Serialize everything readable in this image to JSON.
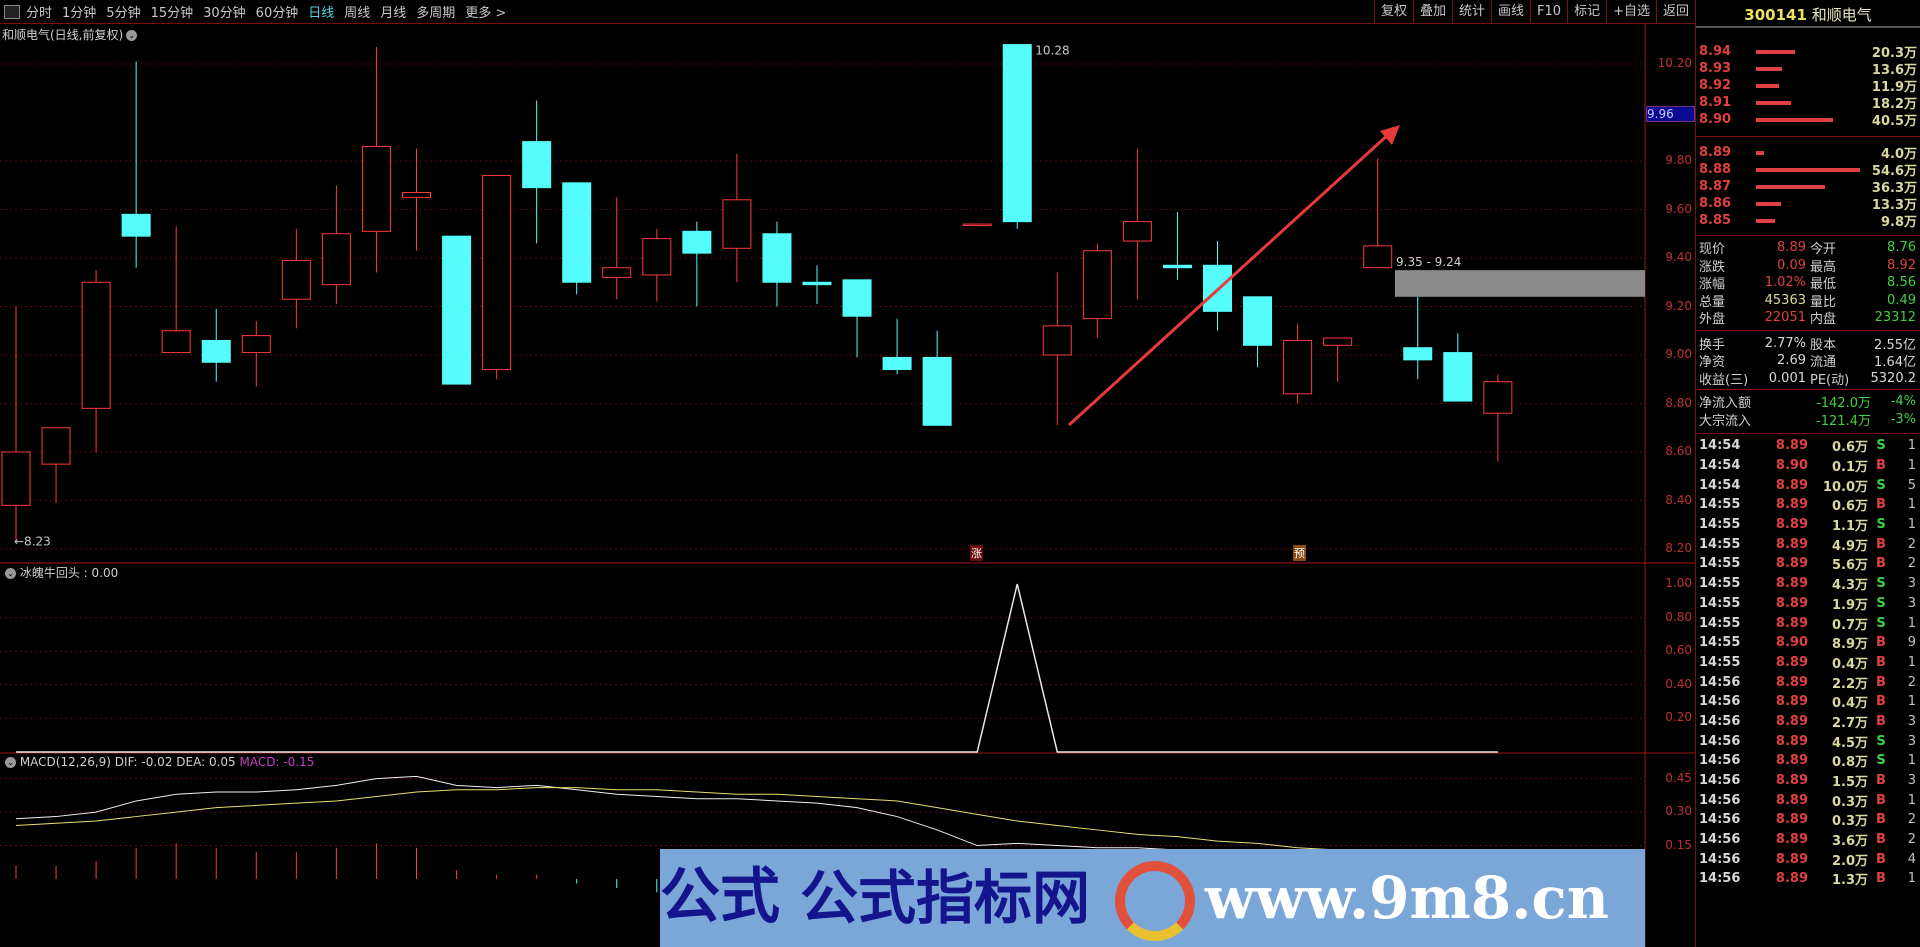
{
  "toolbar": {
    "periods": [
      "分时",
      "1分钟",
      "5分钟",
      "15分钟",
      "30分钟",
      "60分钟",
      "日线",
      "周线",
      "月线",
      "多周期",
      "更多 >"
    ],
    "active": "日线",
    "buttons": [
      "复权",
      "叠加",
      "统计",
      "画线",
      "F10",
      "标记",
      "+自选",
      "返回"
    ]
  },
  "main_pane": {
    "title": "和顺电气(日线,前复权)",
    "cursor_price": "9.96",
    "high_label": "10.28",
    "low_label": "←8.23",
    "markers": [
      "涨",
      "预"
    ],
    "range_box": {
      "label": "9.35 - 9.24",
      "high": 9.35,
      "low": 9.24
    },
    "axis": [
      "10.20",
      "9.80",
      "9.60",
      "9.40",
      "9.20",
      "9.00",
      "8.80",
      "8.60",
      "8.40",
      "8.20"
    ]
  },
  "indicator_pane": {
    "title": "冰魄牛回头 : 0.00",
    "axis": [
      "1.00",
      "0.80",
      "0.60",
      "0.40",
      "0.20"
    ]
  },
  "macd_pane": {
    "label": "MACD(12,26,9)",
    "dif": "DIF: -0.02",
    "dea": "DEA: 0.05",
    "macd": "MACD: -0.15",
    "axis": [
      "0.45",
      "0.30",
      "0.15"
    ]
  },
  "chart_data": {
    "type": "candlestick",
    "ylim": [
      8.2,
      10.3
    ],
    "candles": [
      [
        8.38,
        8.6,
        9.2,
        8.23
      ],
      [
        8.55,
        8.7,
        8.7,
        8.39
      ],
      [
        8.78,
        9.3,
        9.35,
        8.6
      ],
      [
        9.58,
        9.49,
        10.21,
        9.36
      ],
      [
        9.01,
        9.1,
        9.53,
        9.01
      ],
      [
        9.06,
        8.97,
        9.19,
        8.89
      ],
      [
        9.01,
        9.08,
        9.14,
        8.87
      ],
      [
        9.23,
        9.39,
        9.52,
        9.11
      ],
      [
        9.29,
        9.5,
        9.7,
        9.21
      ],
      [
        9.51,
        9.86,
        10.27,
        9.34
      ],
      [
        9.65,
        9.67,
        9.85,
        9.43
      ],
      [
        9.49,
        8.88,
        9.49,
        8.88
      ],
      [
        8.94,
        9.74,
        9.74,
        8.9
      ],
      [
        9.88,
        9.69,
        10.05,
        9.46
      ],
      [
        9.71,
        9.3,
        9.71,
        9.25
      ],
      [
        9.32,
        9.36,
        9.65,
        9.23
      ],
      [
        9.33,
        9.48,
        9.52,
        9.22
      ],
      [
        9.51,
        9.42,
        9.55,
        9.2
      ],
      [
        9.44,
        9.64,
        9.83,
        9.3
      ],
      [
        9.5,
        9.3,
        9.55,
        9.2
      ],
      [
        9.3,
        9.29,
        9.37,
        9.21
      ],
      [
        9.31,
        9.16,
        9.31,
        8.99
      ],
      [
        8.99,
        8.94,
        9.15,
        8.92
      ],
      [
        8.99,
        8.71,
        9.1,
        8.71
      ],
      [
        9.54,
        9.54,
        9.54,
        9.54
      ],
      [
        10.28,
        9.55,
        10.28,
        9.52
      ],
      [
        9.0,
        9.12,
        9.34,
        8.71
      ],
      [
        9.15,
        9.43,
        9.46,
        9.07
      ],
      [
        9.47,
        9.55,
        9.85,
        9.23
      ],
      [
        9.37,
        9.36,
        9.59,
        9.31
      ],
      [
        9.37,
        9.18,
        9.47,
        9.1
      ],
      [
        9.24,
        9.04,
        9.24,
        8.95
      ],
      [
        8.84,
        9.06,
        9.13,
        8.8
      ],
      [
        9.04,
        9.07,
        9.07,
        8.89
      ],
      [
        9.36,
        9.45,
        9.81,
        9.36
      ],
      [
        9.03,
        8.98,
        9.25,
        8.9
      ],
      [
        9.01,
        8.81,
        9.09,
        8.81
      ],
      [
        8.76,
        8.89,
        8.92,
        8.56
      ]
    ],
    "signal": [
      0,
      0,
      0,
      0,
      0,
      0,
      0,
      0,
      0,
      0,
      0,
      0,
      0,
      0,
      0,
      0,
      0,
      0,
      0,
      0,
      0,
      0,
      0,
      0,
      0,
      1,
      0,
      0,
      0,
      0,
      0,
      0,
      0,
      0,
      0,
      0,
      0,
      0
    ],
    "dif": [
      0.27,
      0.28,
      0.3,
      0.35,
      0.38,
      0.39,
      0.39,
      0.4,
      0.42,
      0.45,
      0.46,
      0.42,
      0.41,
      0.42,
      0.4,
      0.38,
      0.37,
      0.36,
      0.36,
      0.35,
      0.34,
      0.32,
      0.28,
      0.22,
      0.15,
      0.16,
      0.15,
      0.14,
      0.14,
      0.13,
      0.12,
      0.11,
      0.1,
      0.09,
      0.09,
      0.07,
      0.04,
      -0.02
    ],
    "dea": [
      0.24,
      0.25,
      0.26,
      0.28,
      0.3,
      0.32,
      0.33,
      0.34,
      0.35,
      0.37,
      0.39,
      0.4,
      0.4,
      0.41,
      0.41,
      0.4,
      0.4,
      0.39,
      0.38,
      0.38,
      0.37,
      0.36,
      0.35,
      0.32,
      0.29,
      0.26,
      0.24,
      0.22,
      0.2,
      0.19,
      0.17,
      0.16,
      0.14,
      0.13,
      0.12,
      0.11,
      0.09,
      0.05
    ],
    "macd": [
      0.06,
      0.06,
      0.08,
      0.14,
      0.16,
      0.14,
      0.12,
      0.12,
      0.14,
      0.16,
      0.14,
      0.04,
      0.02,
      0.02,
      -0.02,
      -0.04,
      -0.06,
      -0.06,
      -0.04,
      -0.06,
      -0.06,
      -0.08,
      -0.14,
      -0.2,
      -0.28,
      -0.2,
      -0.18,
      -0.16,
      -0.12,
      -0.12,
      -0.1,
      -0.1,
      -0.08,
      -0.08,
      -0.06,
      -0.08,
      -0.1,
      -0.15
    ]
  },
  "colors": {
    "up": "#ff3a3a",
    "down": "#54fcfc",
    "grid": "#5a0a0a",
    "arrow": "#e83a3a"
  },
  "quote": {
    "code": "300141",
    "name": "和顺电气",
    "asks": [
      {
        "price": "8.94",
        "vol": "20.3万",
        "v": 20.3
      },
      {
        "price": "8.93",
        "vol": "13.6万",
        "v": 13.6
      },
      {
        "price": "8.92",
        "vol": "11.9万",
        "v": 11.9
      },
      {
        "price": "8.91",
        "vol": "18.2万",
        "v": 18.2
      },
      {
        "price": "8.90",
        "vol": "40.5万",
        "v": 40.5
      }
    ],
    "bids": [
      {
        "price": "8.89",
        "vol": "4.0万",
        "v": 4.0
      },
      {
        "price": "8.88",
        "vol": "54.6万",
        "v": 54.6
      },
      {
        "price": "8.87",
        "vol": "36.3万",
        "v": 36.3
      },
      {
        "price": "8.86",
        "vol": "13.3万",
        "v": 13.3
      },
      {
        "price": "8.85",
        "vol": "9.8万",
        "v": 9.8
      }
    ],
    "stats": [
      [
        "现价",
        "8.89",
        "red",
        "今开",
        "8.76",
        "green"
      ],
      [
        "涨跌",
        "0.09",
        "red",
        "最高",
        "8.92",
        "red"
      ],
      [
        "涨幅",
        "1.02%",
        "red",
        "最低",
        "8.56",
        "green"
      ],
      [
        "总量",
        "45363",
        "yellow",
        "量比",
        "0.49",
        "green"
      ],
      [
        "外盘",
        "22051",
        "red",
        "内盘",
        "23312",
        "green"
      ]
    ],
    "stats2": [
      [
        "换手",
        "2.77%",
        "white",
        "股本",
        "2.55亿",
        "white"
      ],
      [
        "净资",
        "2.69",
        "white",
        "流通",
        "1.64亿",
        "white"
      ],
      [
        "收益(三)",
        "0.001",
        "white",
        "PE(动)",
        "5320.2",
        "white"
      ]
    ],
    "flows": [
      [
        "净流入额",
        "-142.0万",
        "-4%"
      ],
      [
        "大宗流入",
        "-121.4万",
        "-3%"
      ]
    ],
    "trades": [
      [
        "14:54",
        "8.89",
        "0.6万",
        "S",
        "1"
      ],
      [
        "14:54",
        "8.90",
        "0.1万",
        "B",
        "1"
      ],
      [
        "14:54",
        "8.89",
        "10.0万",
        "S",
        "5"
      ],
      [
        "14:55",
        "8.89",
        "0.6万",
        "B",
        "1"
      ],
      [
        "14:55",
        "8.89",
        "1.1万",
        "S",
        "1"
      ],
      [
        "14:55",
        "8.89",
        "4.9万",
        "B",
        "2"
      ],
      [
        "14:55",
        "8.89",
        "5.6万",
        "B",
        "2"
      ],
      [
        "14:55",
        "8.89",
        "4.3万",
        "S",
        "3"
      ],
      [
        "14:55",
        "8.89",
        "1.9万",
        "S",
        "3"
      ],
      [
        "14:55",
        "8.89",
        "0.7万",
        "S",
        "1"
      ],
      [
        "14:55",
        "8.90",
        "8.9万",
        "B",
        "9"
      ],
      [
        "14:55",
        "8.89",
        "0.4万",
        "B",
        "1"
      ],
      [
        "14:56",
        "8.89",
        "2.2万",
        "B",
        "2"
      ],
      [
        "14:56",
        "8.89",
        "0.4万",
        "B",
        "1"
      ],
      [
        "14:56",
        "8.89",
        "2.7万",
        "B",
        "3"
      ],
      [
        "14:56",
        "8.89",
        "4.5万",
        "S",
        "3"
      ],
      [
        "14:56",
        "8.89",
        "0.8万",
        "S",
        "1"
      ],
      [
        "14:56",
        "8.89",
        "1.5万",
        "B",
        "3"
      ],
      [
        "14:56",
        "8.89",
        "0.3万",
        "B",
        "1"
      ],
      [
        "14:56",
        "8.89",
        "0.3万",
        "B",
        "2"
      ],
      [
        "14:56",
        "8.89",
        "3.6万",
        "B",
        "2"
      ],
      [
        "14:56",
        "8.89",
        "2.0万",
        "B",
        "4"
      ],
      [
        "14:56",
        "8.89",
        "1.3万",
        "B",
        "1"
      ]
    ]
  },
  "watermark": {
    "text1": "公式",
    "text2": "公式指标网",
    "url": "www.9m8.cn"
  }
}
